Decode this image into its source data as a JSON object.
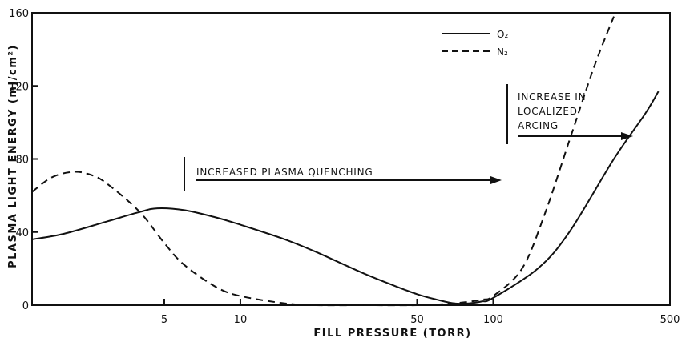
{
  "chart_data": {
    "type": "line",
    "title": "",
    "xlabel": "FILL PRESSURE (TORR)",
    "ylabel": "PLASMA LIGHT ENERGY (mJ/cm²)",
    "x_scale": "log",
    "xlim": [
      1.5,
      500
    ],
    "ylim": [
      0,
      160
    ],
    "x_ticks": [
      5,
      10,
      50,
      100,
      500
    ],
    "x_tick_labels": [
      "5",
      "10",
      "50",
      "100",
      "500"
    ],
    "y_ticks": [
      0,
      40,
      80,
      120,
      160
    ],
    "y_tick_labels": [
      "0",
      "40",
      "80",
      "120",
      "160"
    ],
    "grid": false,
    "legend": {
      "placement": "top-right"
    },
    "series": [
      {
        "name": "O₂",
        "style": "solid",
        "points": [
          [
            1.5,
            36
          ],
          [
            2,
            39
          ],
          [
            3,
            46
          ],
          [
            4,
            51
          ],
          [
            4.7,
            53
          ],
          [
            6,
            52
          ],
          [
            8,
            48
          ],
          [
            10,
            44
          ],
          [
            15,
            36
          ],
          [
            20,
            29
          ],
          [
            30,
            18
          ],
          [
            40,
            11
          ],
          [
            50,
            6
          ],
          [
            60,
            3
          ],
          [
            70,
            1
          ],
          [
            80,
            1
          ],
          [
            90,
            2
          ],
          [
            100,
            4
          ],
          [
            150,
            20
          ],
          [
            200,
            40
          ],
          [
            300,
            80
          ],
          [
            400,
            105
          ],
          [
            450,
            117
          ]
        ]
      },
      {
        "name": "N₂",
        "style": "dashed",
        "points": [
          [
            1.5,
            62
          ],
          [
            1.8,
            70
          ],
          [
            2.2,
            73
          ],
          [
            2.6,
            71
          ],
          [
            3,
            66
          ],
          [
            4,
            51
          ],
          [
            5,
            34
          ],
          [
            6,
            22
          ],
          [
            8,
            10
          ],
          [
            10,
            5
          ],
          [
            15,
            1
          ],
          [
            20,
            0
          ],
          [
            30,
            0
          ],
          [
            50,
            0
          ],
          [
            70,
            1
          ],
          [
            90,
            3
          ],
          [
            100,
            5
          ],
          [
            130,
            20
          ],
          [
            160,
            50
          ],
          [
            200,
            90
          ],
          [
            250,
            130
          ],
          [
            300,
            158
          ]
        ]
      }
    ],
    "annotations": {
      "quenching": "INCREASED PLASMA QUENCHING",
      "arcing_lines": [
        "INCREASE IN",
        "LOCALIZED",
        "ARCING"
      ]
    }
  }
}
